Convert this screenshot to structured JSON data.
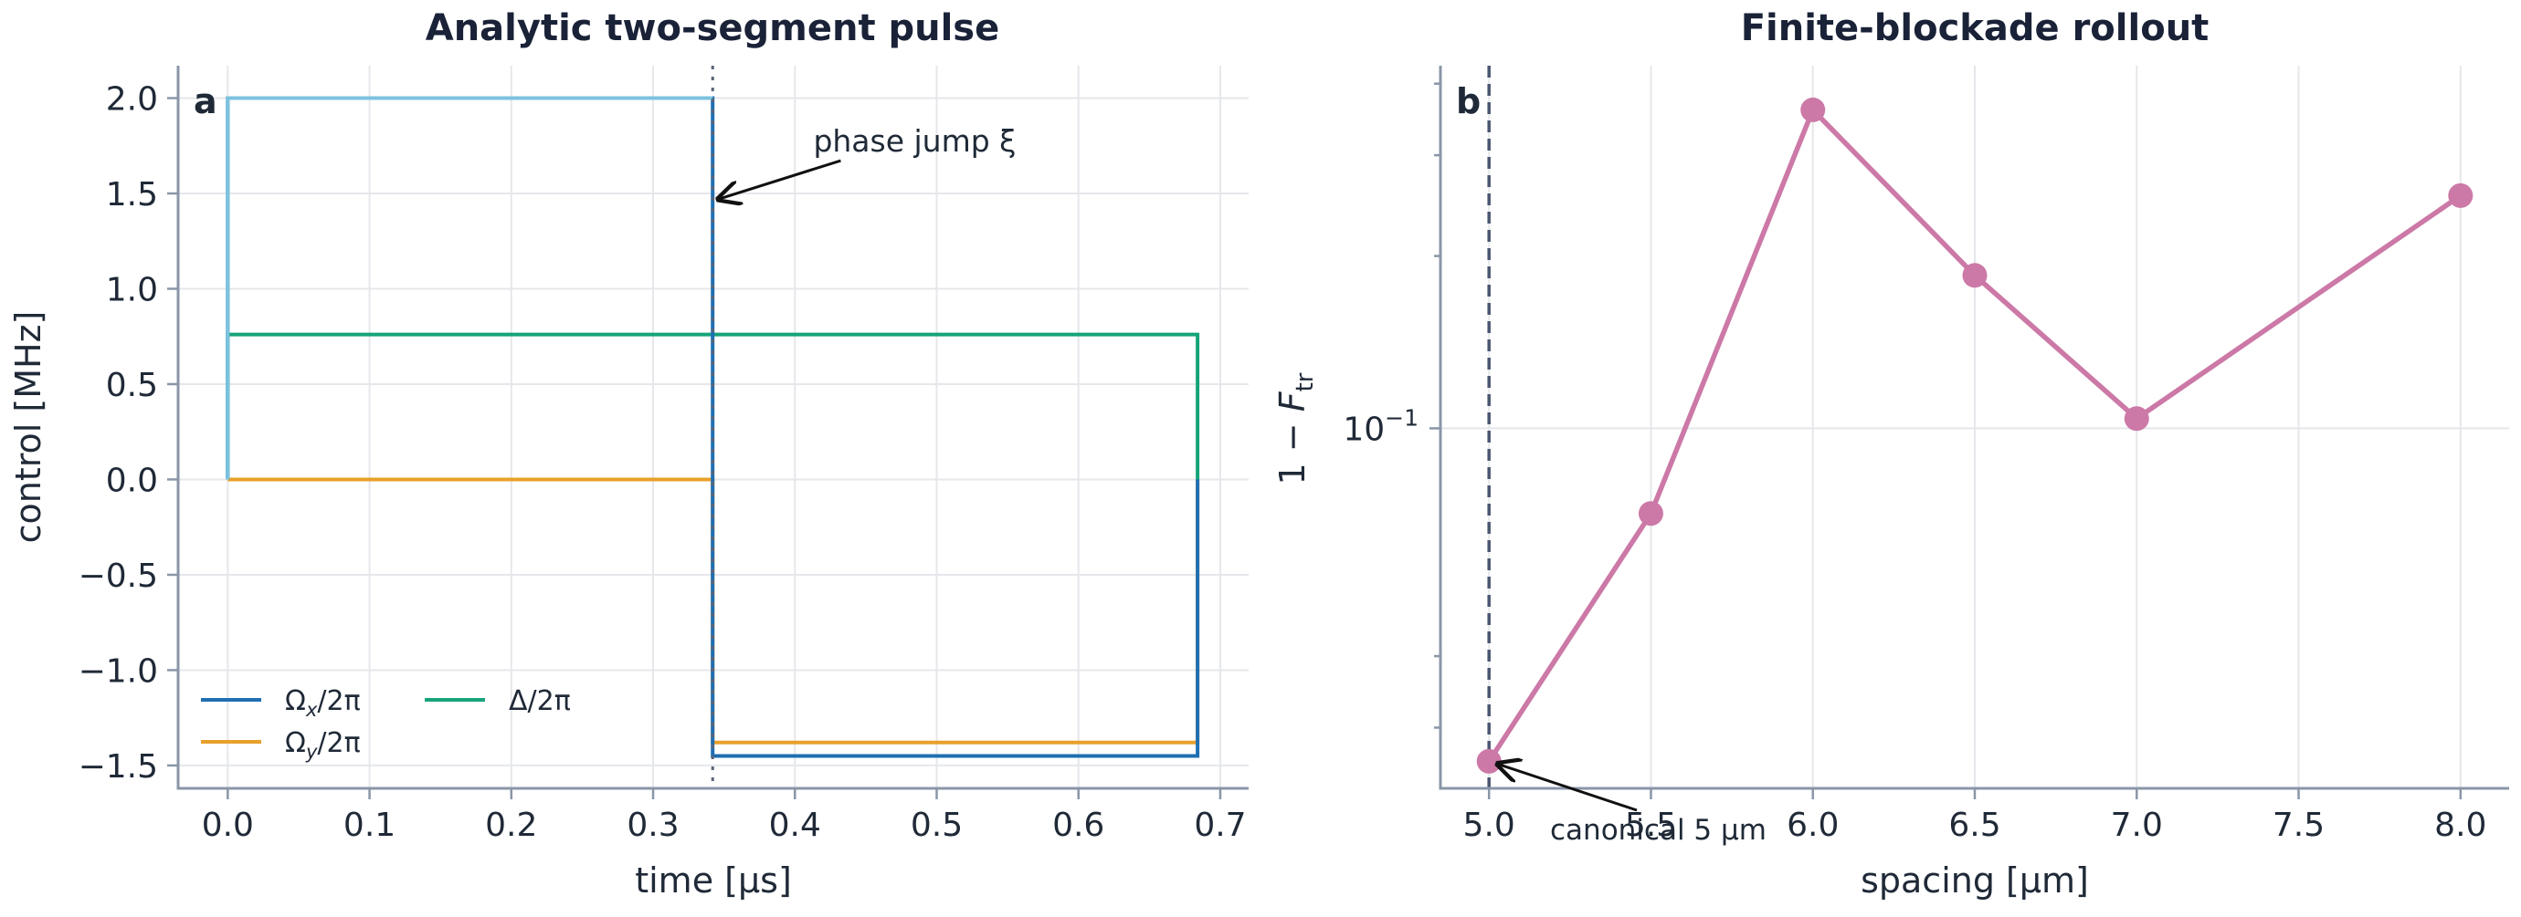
{
  "chart_data": [
    {
      "type": "line",
      "panel_letter": "a",
      "title": "Analytic two-segment pulse",
      "xlabel": "time [μs]",
      "ylabel": "control [MHz]",
      "xlim": [
        -0.035,
        0.72
      ],
      "ylim": [
        -1.62,
        2.17
      ],
      "x_ticks": [
        0.0,
        0.1,
        0.2,
        0.3,
        0.4,
        0.5,
        0.6,
        0.7
      ],
      "x_tick_labels": [
        "0.0",
        "0.1",
        "0.2",
        "0.3",
        "0.4",
        "0.5",
        "0.6",
        "0.7"
      ],
      "y_ticks": [
        2.0,
        1.5,
        1.0,
        0.5,
        0.0,
        -0.5,
        -1.0,
        -1.5
      ],
      "y_tick_labels": [
        "2.0",
        "1.5",
        "1.0",
        "0.5",
        "0.0",
        "−0.5",
        "−1.0",
        "−1.5"
      ],
      "grid": true,
      "legend_position": "lower-left",
      "vline": 0.342,
      "series": [
        {
          "name": "Ωx/2π",
          "label_main": "Ω",
          "label_sub": "x",
          "label_tail": "/2π",
          "color": "#1f6fb2",
          "x": [
            0.0,
            0.0,
            0.342,
            0.342,
            0.684,
            0.684
          ],
          "y": [
            0.0,
            2.0,
            2.0,
            -1.45,
            -1.45,
            0.0
          ]
        },
        {
          "name": "Ωy/2π",
          "label_main": "Ω",
          "label_sub": "y",
          "label_tail": "/2π",
          "color": "#e8a02a",
          "x": [
            0.0,
            0.342,
            0.342,
            0.684,
            0.684
          ],
          "y": [
            0.0,
            0.0,
            -1.38,
            -1.38,
            0.0
          ]
        },
        {
          "name": "Δ/2π",
          "label_main": "Δ/2π",
          "label_sub": "",
          "label_tail": "",
          "color": "#16a37a",
          "x": [
            0.0,
            0.0,
            0.684,
            0.684
          ],
          "y": [
            0.0,
            0.76,
            0.76,
            0.0
          ]
        },
        {
          "name": "",
          "color": "#7cc3df",
          "legend": false,
          "x": [
            0.0,
            0.0,
            0.342
          ],
          "y": [
            0.0,
            2.0,
            2.0
          ]
        }
      ],
      "annotations": [
        {
          "text": "phase jump ξ",
          "xy": [
            0.346,
            1.47
          ],
          "xytext": [
            0.413,
            1.72
          ]
        }
      ]
    },
    {
      "type": "line",
      "panel_letter": "b",
      "title": "Finite-blockade rollout",
      "xlabel": "spacing [μm]",
      "ylabel": "1 − F_tr",
      "y_scale": "log",
      "xlim": [
        4.85,
        8.15
      ],
      "ylim": [
        0.0235,
        0.43
      ],
      "x_ticks": [
        5.0,
        5.5,
        6.0,
        6.5,
        7.0,
        7.5,
        8.0
      ],
      "x_tick_labels": [
        "5.0",
        "5.5",
        "6.0",
        "6.5",
        "7.0",
        "7.5",
        "8.0"
      ],
      "y_major_ticks": [
        0.1
      ],
      "y_minor_ticks": [
        0.03,
        0.04,
        0.2,
        0.3,
        0.4
      ],
      "grid": true,
      "vline": 5.0,
      "series": [
        {
          "name": "",
          "color": "#cc79a7",
          "x": [
            5.0,
            5.5,
            6.0,
            6.5,
            7.0,
            8.0
          ],
          "y": [
            0.0262,
            0.071,
            0.36,
            0.185,
            0.104,
            0.255
          ]
        }
      ],
      "annotations": [
        {
          "text": "canonical 5 μm",
          "xy": [
            5.01,
            0.0263
          ],
          "xytext": [
            5.4,
            0.0195
          ]
        }
      ]
    }
  ]
}
